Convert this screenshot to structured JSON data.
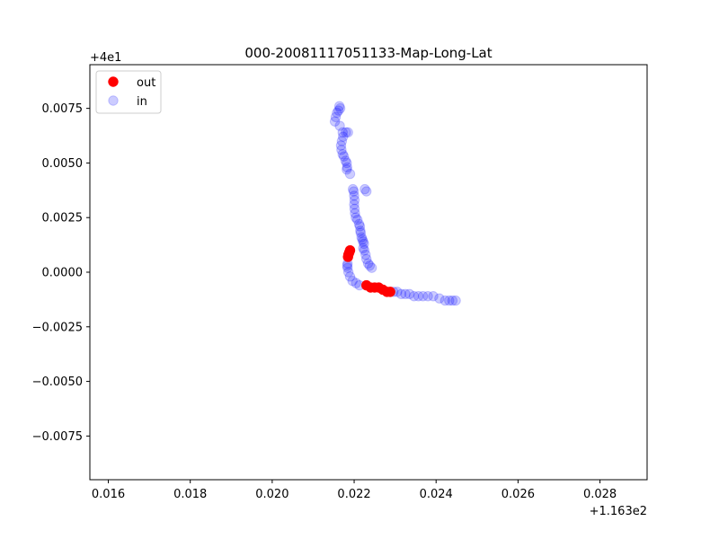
{
  "chart_data": {
    "type": "scatter",
    "title": "000-20081117051133-Map-Long-Lat",
    "xlabel": "",
    "ylabel": "",
    "x_offset_label": "+1.163e2",
    "y_offset_label": "+4e1",
    "xlim": [
      0.01555,
      0.02915
    ],
    "ylim": [
      -0.0095,
      0.0095
    ],
    "x_ticks": [
      0.016,
      0.018,
      0.02,
      0.022,
      0.024,
      0.026,
      0.028
    ],
    "x_tick_labels": [
      "0.016",
      "0.018",
      "0.020",
      "0.022",
      "0.024",
      "0.026",
      "0.028"
    ],
    "y_ticks": [
      -0.0075,
      -0.005,
      -0.0025,
      0.0,
      0.0025,
      0.005,
      0.0075
    ],
    "y_tick_labels": [
      "−0.0075",
      "−0.0050",
      "−0.0025",
      "0.0000",
      "0.0025",
      "0.0050",
      "0.0075"
    ],
    "grid": false,
    "legend_position": "top-left",
    "series": [
      {
        "name": "out",
        "color": "#ff0000",
        "opacity": 1.0,
        "points": [
          [
            0.02185,
            0.0007
          ],
          [
            0.02186,
            0.0008
          ],
          [
            0.02188,
            0.0009
          ],
          [
            0.0219,
            0.001
          ],
          [
            0.0223,
            -0.0006
          ],
          [
            0.0224,
            -0.0007
          ],
          [
            0.0225,
            -0.0007
          ],
          [
            0.0226,
            -0.0007
          ],
          [
            0.0227,
            -0.0008
          ],
          [
            0.0228,
            -0.0009
          ],
          [
            0.02288,
            -0.0009
          ]
        ]
      },
      {
        "name": "in",
        "color": "#0000ff",
        "opacity": 0.2,
        "points": [
          [
            0.02164,
            0.0076
          ],
          [
            0.02166,
            0.0075
          ],
          [
            0.02162,
            0.0074
          ],
          [
            0.02158,
            0.0073
          ],
          [
            0.02155,
            0.0071
          ],
          [
            0.02153,
            0.0069
          ],
          [
            0.02165,
            0.0067
          ],
          [
            0.02172,
            0.0064
          ],
          [
            0.0218,
            0.0064
          ],
          [
            0.02185,
            0.0064
          ],
          [
            0.02173,
            0.0062
          ],
          [
            0.0217,
            0.006
          ],
          [
            0.02168,
            0.0058
          ],
          [
            0.02169,
            0.0056
          ],
          [
            0.02172,
            0.0054
          ],
          [
            0.02175,
            0.0053
          ],
          [
            0.02179,
            0.0051
          ],
          [
            0.02182,
            0.005
          ],
          [
            0.02183,
            0.0048
          ],
          [
            0.02182,
            0.0047
          ],
          [
            0.0219,
            0.0045
          ],
          [
            0.02197,
            0.0038
          ],
          [
            0.02199,
            0.0037
          ],
          [
            0.022,
            0.0035
          ],
          [
            0.02201,
            0.0033
          ],
          [
            0.022,
            0.0031
          ],
          [
            0.02201,
            0.0029
          ],
          [
            0.02202,
            0.0027
          ],
          [
            0.02204,
            0.0025
          ],
          [
            0.02208,
            0.0024
          ],
          [
            0.02212,
            0.0022
          ],
          [
            0.02214,
            0.0021
          ],
          [
            0.02215,
            0.0019
          ],
          [
            0.02216,
            0.0018
          ],
          [
            0.02218,
            0.0016
          ],
          [
            0.0222,
            0.0015
          ],
          [
            0.02222,
            0.0014
          ],
          [
            0.02224,
            0.0013
          ],
          [
            0.02222,
            0.0011
          ],
          [
            0.02225,
            0.001
          ],
          [
            0.02228,
            0.0008
          ],
          [
            0.0223,
            0.0006
          ],
          [
            0.02234,
            0.0004
          ],
          [
            0.02238,
            0.0003
          ],
          [
            0.02243,
            0.0002
          ],
          [
            0.02226,
            0.0038
          ],
          [
            0.0223,
            0.0037
          ],
          [
            0.02184,
            0.0004
          ],
          [
            0.02183,
            0.0003
          ],
          [
            0.02184,
            0.0002
          ],
          [
            0.02186,
            0.0
          ],
          [
            0.0219,
            -0.0002
          ],
          [
            0.02196,
            -0.0004
          ],
          [
            0.02205,
            -0.0005
          ],
          [
            0.02213,
            -0.0006
          ],
          [
            0.02296,
            -0.0009
          ],
          [
            0.02305,
            -0.0009
          ],
          [
            0.02315,
            -0.001
          ],
          [
            0.02325,
            -0.001
          ],
          [
            0.02335,
            -0.001
          ],
          [
            0.02346,
            -0.0011
          ],
          [
            0.02357,
            -0.0011
          ],
          [
            0.02368,
            -0.0011
          ],
          [
            0.0238,
            -0.0011
          ],
          [
            0.02393,
            -0.0011
          ],
          [
            0.02408,
            -0.0012
          ],
          [
            0.02422,
            -0.0013
          ],
          [
            0.02432,
            -0.0013
          ],
          [
            0.0244,
            -0.0013
          ],
          [
            0.02448,
            -0.0013
          ]
        ]
      }
    ]
  }
}
